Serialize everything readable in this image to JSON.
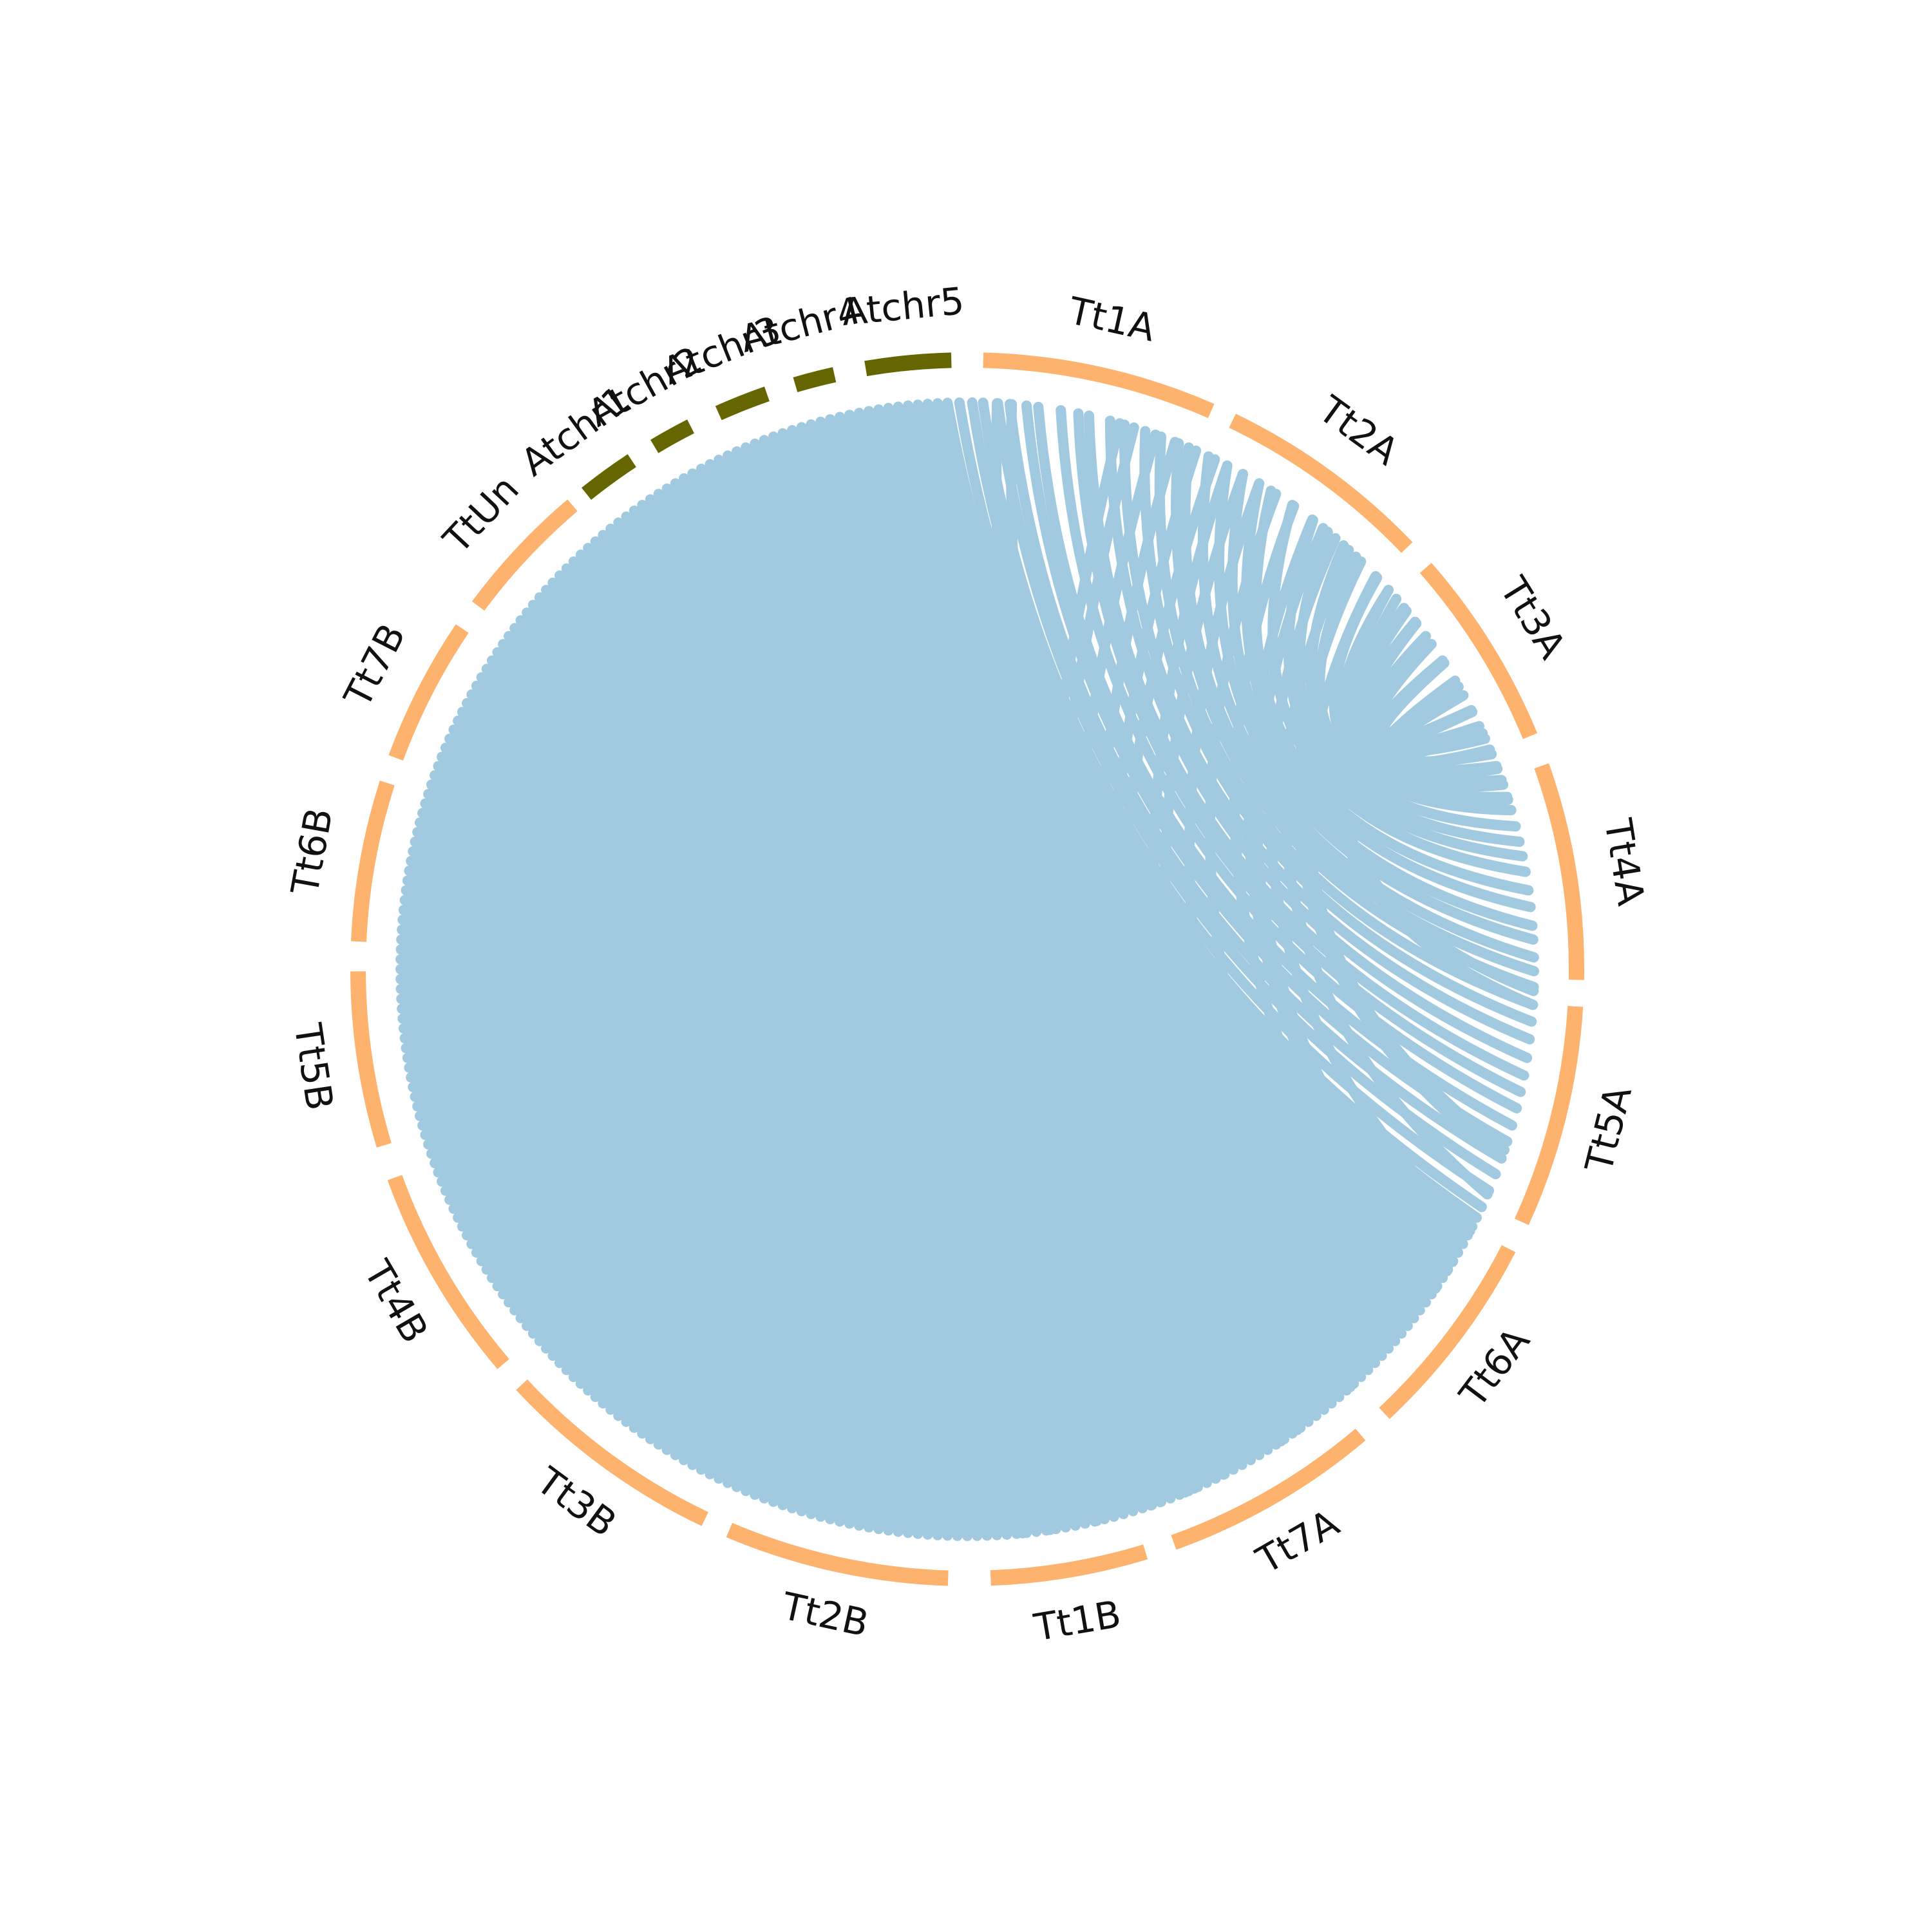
{
  "figure": {
    "background": "#ffffff",
    "link_color": "#a1cae0"
  },
  "segments": [
    {
      "id": "Tt1A",
      "label": "Tt1A",
      "start": 1.5,
      "end": 23.6,
      "color": "#fdb26e"
    },
    {
      "id": "Tt2A",
      "label": "Tt2A",
      "start": 25.8,
      "end": 46.2,
      "color": "#fdb26e"
    },
    {
      "id": "Tt3A",
      "label": "Tt3A",
      "start": 48.8,
      "end": 67.5,
      "color": "#fdb26e"
    },
    {
      "id": "Tt4A",
      "label": "Tt4A",
      "start": 70.5,
      "end": 91.0,
      "color": "#fdb26e"
    },
    {
      "id": "Tt5A",
      "label": "Tt5A",
      "start": 93.5,
      "end": 114.5,
      "color": "#fdb26e"
    },
    {
      "id": "Tt6A",
      "label": "Tt6A",
      "start": 117.3,
      "end": 136.8,
      "color": "#fdb26e"
    },
    {
      "id": "Tt7A",
      "label": "Tt7A",
      "start": 139.8,
      "end": 160.2,
      "color": "#fdb26e"
    },
    {
      "id": "Tt1B",
      "label": "Tt1B",
      "start": 163.0,
      "end": 177.8,
      "color": "#fdb26e"
    },
    {
      "id": "Tt2B",
      "label": "Tt2B",
      "start": 181.8,
      "end": 203.0,
      "color": "#fdb26e"
    },
    {
      "id": "Tt3B",
      "label": "Tt3B",
      "start": 205.5,
      "end": 227.0,
      "color": "#fdb26e"
    },
    {
      "id": "Tt4B",
      "label": "Tt4B",
      "start": 229.6,
      "end": 250.0,
      "color": "#fdb26e"
    },
    {
      "id": "Tt5B",
      "label": "Tt5B",
      "start": 253.2,
      "end": 269.8,
      "color": "#fdb26e"
    },
    {
      "id": "Tt6B",
      "label": "Tt6B",
      "start": 272.6,
      "end": 287.8,
      "color": "#fdb26e"
    },
    {
      "id": "Tt7B",
      "label": "Tt7B",
      "start": 290.3,
      "end": 304.0,
      "color": "#fdb26e"
    },
    {
      "id": "TtUn",
      "label": "TtUn",
      "start": 306.6,
      "end": 319.6,
      "color": "#fdb26e"
    },
    {
      "id": "Atchr1",
      "label": "Atchr1",
      "start": 321.3,
      "end": 326.6,
      "color": "#666600"
    },
    {
      "id": "Atchr2",
      "label": "Atchr2",
      "start": 329.1,
      "end": 333.0,
      "color": "#666600"
    },
    {
      "id": "Atchr3",
      "label": "Atchr3",
      "start": 335.9,
      "end": 340.8,
      "color": "#666600"
    },
    {
      "id": "Atchr4",
      "label": "Atchr4",
      "start": 343.6,
      "end": 347.4,
      "color": "#666600"
    },
    {
      "id": "Atchr5",
      "label": "Atchr5",
      "start": 350.4,
      "end": 358.5,
      "color": "#666600"
    }
  ],
  "links": [
    [
      3.0,
      161.1
    ],
    [
      4.5,
      153.1
    ],
    [
      15.6,
      174.4
    ],
    [
      17.1,
      171.6
    ],
    [
      19.4,
      166.8
    ],
    [
      21.5,
      160.1
    ],
    [
      23.8,
      157.4
    ],
    [
      25.9,
      156.4
    ],
    [
      27.3,
      146.4
    ],
    [
      29.1,
      144.4
    ],
    [
      31.0,
      137.5
    ],
    [
      33.0,
      132.0
    ],
    [
      35.2,
      124.3
    ],
    [
      37.5,
      122.2
    ],
    [
      38.9,
      121.1
    ],
    [
      40.5,
      117.5
    ],
    [
      42.3,
      113.4
    ],
    [
      44.0,
      109.5
    ],
    [
      46.1,
      108.6
    ],
    [
      48.0,
      93.6
    ],
    [
      49.2,
      92.2
    ],
    [
      50.8,
      72.6
    ],
    [
      52.4,
      71.0
    ],
    [
      55.0,
      69.3
    ],
    [
      57.3,
      67.2
    ],
    [
      59.4,
      65.4
    ],
    [
      61.1,
      63.0
    ],
    [
      62.8,
      60.1
    ],
    [
      64.6,
      57.0
    ],
    [
      66.0,
      54.0
    ],
    [
      67.7,
      52.2
    ],
    [
      69.0,
      50.4
    ],
    [
      70.5,
      48.0
    ],
    [
      72.3,
      46.3
    ],
    [
      73.7,
      43.3
    ],
    [
      75.4,
      41.6
    ],
    [
      77.0,
      39.5
    ],
    [
      78.5,
      37.6
    ],
    [
      80.1,
      35.0
    ],
    [
      82.0,
      32.4
    ],
    [
      83.7,
      31.0
    ],
    [
      85.6,
      29.1
    ],
    [
      87.0,
      27.3
    ],
    [
      88.8,
      25.2
    ],
    [
      90.2,
      23.0
    ],
    [
      91.8,
      21.9
    ],
    [
      93.6,
      20.0
    ],
    [
      95.3,
      18.3
    ],
    [
      97.1,
      16.1
    ],
    [
      99.0,
      14.6
    ],
    [
      100.8,
      12.4
    ],
    [
      102.5,
      11.3
    ],
    [
      104.2,
      9.5
    ],
    [
      106.0,
      7.2
    ],
    [
      107.7,
      6.0
    ],
    [
      109.5,
      4.3
    ],
    [
      111.2,
      3.1
    ],
    [
      113.0,
      1.6
    ],
    [
      114.8,
      0.5
    ],
    [
      116.0,
      359.2
    ],
    [
      117.0,
      358.0
    ],
    [
      118.0,
      357.0
    ],
    [
      119.0,
      356.0
    ],
    [
      120.0,
      355.0
    ],
    [
      121.0,
      354.0
    ],
    [
      122.0,
      353.0
    ],
    [
      123.0,
      352.0
    ],
    [
      124.0,
      351.0
    ],
    [
      125.0,
      350.0
    ],
    [
      126.0,
      349.0
    ],
    [
      127.0,
      348.0
    ],
    [
      128.0,
      347.0
    ],
    [
      129.0,
      346.0
    ],
    [
      130.0,
      345.0
    ],
    [
      131.0,
      344.0
    ],
    [
      132.0,
      343.0
    ],
    [
      133.0,
      342.0
    ],
    [
      134.0,
      341.0
    ],
    [
      135.0,
      340.0
    ],
    [
      136.0,
      339.0
    ],
    [
      137.0,
      338.0
    ],
    [
      138.0,
      337.0
    ],
    [
      139.0,
      336.0
    ],
    [
      140.0,
      335.0
    ],
    [
      141.0,
      334.0
    ],
    [
      142.0,
      333.0
    ],
    [
      143.0,
      332.0
    ],
    [
      144.0,
      331.0
    ],
    [
      145.0,
      330.0
    ],
    [
      146.0,
      329.0
    ],
    [
      147.0,
      328.0
    ],
    [
      148.0,
      327.0
    ],
    [
      149.0,
      326.0
    ],
    [
      150.0,
      325.0
    ],
    [
      151.0,
      324.0
    ],
    [
      152.0,
      323.0
    ],
    [
      153.0,
      322.0
    ],
    [
      154.0,
      321.0
    ],
    [
      155.0,
      320.0
    ],
    [
      156.0,
      319.0
    ],
    [
      157.0,
      318.0
    ],
    [
      158.0,
      317.0
    ],
    [
      159.0,
      316.0
    ],
    [
      160.0,
      315.0
    ],
    [
      161.0,
      314.0
    ],
    [
      162.0,
      313.0
    ],
    [
      163.0,
      312.0
    ],
    [
      164.0,
      311.0
    ],
    [
      165.0,
      310.0
    ],
    [
      166.0,
      309.0
    ],
    [
      167.0,
      308.0
    ],
    [
      168.0,
      307.0
    ],
    [
      169.0,
      306.0
    ],
    [
      170.0,
      305.0
    ],
    [
      171.0,
      304.0
    ],
    [
      172.0,
      303.0
    ],
    [
      173.0,
      302.0
    ],
    [
      174.0,
      301.0
    ],
    [
      175.0,
      300.0
    ],
    [
      176.0,
      299.0
    ],
    [
      177.0,
      298.0
    ],
    [
      178.0,
      297.0
    ],
    [
      179.0,
      296.0
    ],
    [
      180.0,
      295.0
    ],
    [
      181.0,
      294.0
    ],
    [
      182.0,
      293.0
    ],
    [
      183.0,
      292.0
    ],
    [
      184.0,
      291.0
    ],
    [
      185.0,
      290.0
    ],
    [
      186.0,
      289.0
    ],
    [
      187.0,
      288.0
    ],
    [
      188.0,
      287.0
    ],
    [
      189.0,
      286.0
    ],
    [
      190.0,
      285.0
    ],
    [
      191.0,
      284.0
    ],
    [
      192.0,
      283.0
    ],
    [
      193.0,
      282.0
    ],
    [
      194.0,
      281.0
    ],
    [
      195.0,
      280.0
    ],
    [
      196.0,
      279.0
    ],
    [
      197.0,
      278.0
    ],
    [
      198.0,
      277.0
    ],
    [
      199.0,
      276.0
    ],
    [
      200.0,
      275.0
    ],
    [
      201.0,
      274.0
    ],
    [
      202.0,
      273.0
    ],
    [
      203.0,
      272.0
    ],
    [
      204.0,
      271.0
    ],
    [
      205.0,
      270.0
    ],
    [
      206.0,
      269.0
    ],
    [
      207.0,
      268.0
    ],
    [
      208.0,
      267.0
    ],
    [
      209.0,
      266.0
    ],
    [
      210.0,
      265.0
    ],
    [
      211.0,
      264.0
    ],
    [
      212.0,
      263.0
    ],
    [
      213.0,
      262.0
    ],
    [
      214.0,
      261.0
    ],
    [
      215.0,
      260.0
    ],
    [
      216.0,
      259.0
    ],
    [
      217.0,
      258.0
    ],
    [
      218.0,
      257.0
    ],
    [
      219.0,
      256.0
    ],
    [
      220.0,
      255.0
    ],
    [
      221.0,
      254.0
    ],
    [
      222.0,
      253.0
    ],
    [
      223.0,
      252.0
    ],
    [
      224.0,
      251.0
    ],
    [
      225.0,
      250.0
    ],
    [
      226.0,
      249.0
    ],
    [
      227.0,
      248.0
    ],
    [
      228.0,
      247.0
    ],
    [
      229.0,
      246.0
    ],
    [
      230.0,
      245.0
    ],
    [
      231.0,
      244.0
    ],
    [
      232.0,
      243.0
    ],
    [
      233.0,
      242.0
    ],
    [
      234.0,
      241.0
    ],
    [
      235.0,
      240.0
    ],
    [
      236.0,
      239.0
    ],
    [
      237.0,
      238.0
    ]
  ]
}
